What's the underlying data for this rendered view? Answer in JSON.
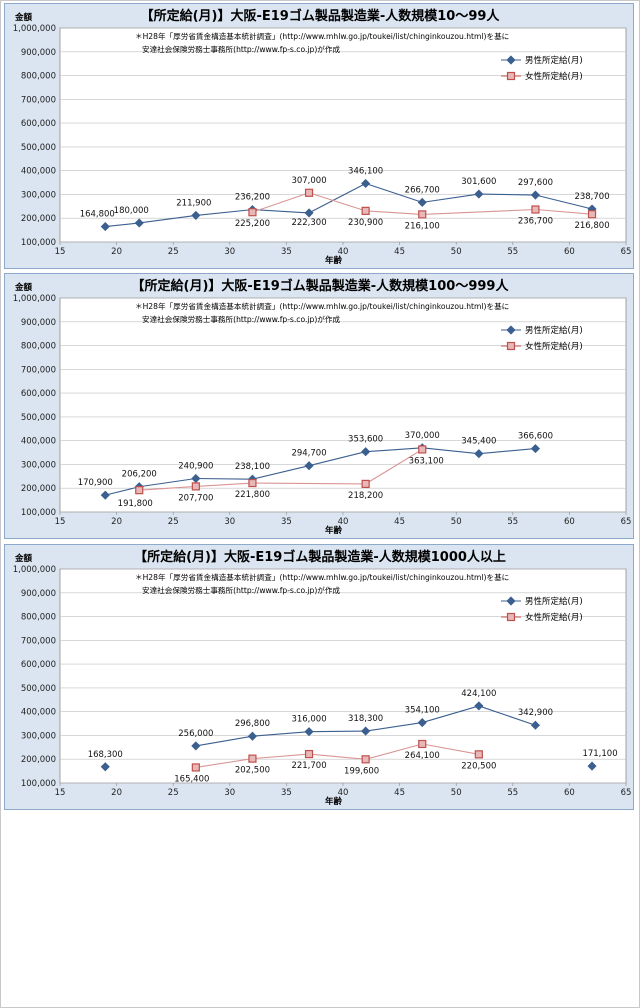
{
  "chart_data": [
    {
      "type": "line",
      "title": "【所定給(月)】大阪-E19ゴム製品製造業-人数規模10～99人",
      "ylabel": "金額",
      "xlabel": "年齢",
      "note": [
        "＊H28年「厚労省賃金構造基本統計調査」(http://www.mhlw.go.jp/toukei/list/chinginkouzou.html)を基に",
        "安達社会保険労務士事務所(http://www.fp-s.co.jp)が作成"
      ],
      "xlim": [
        15,
        65
      ],
      "ylim": [
        100000,
        1000000
      ],
      "xticks": [
        "15",
        "20",
        "25",
        "30",
        "35",
        "40",
        "45",
        "50",
        "55",
        "60",
        "65"
      ],
      "yticks": [
        "100,000",
        "200,000",
        "300,000",
        "400,000",
        "500,000",
        "600,000",
        "700,000",
        "800,000",
        "900,000",
        "1,000,000"
      ],
      "legend_position": "right",
      "series": [
        {
          "name": "男性所定給(月)",
          "color": "#3b5f8f",
          "marker": "diamond",
          "x": [
            19,
            22,
            27,
            32,
            37,
            42,
            47,
            52,
            57,
            62
          ],
          "y": [
            164800,
            180000,
            211900,
            236200,
            222300,
            346100,
            266700,
            301600,
            297600,
            238700
          ],
          "labels": [
            "164,800",
            "180,000",
            "211,900",
            "236,200",
            "222,300",
            "346,100",
            "266,700",
            "301,600",
            "297,600",
            "238,700"
          ]
        },
        {
          "name": "女性所定給(月)",
          "color": "#c0504d",
          "marker": "square",
          "x": [
            32,
            37,
            42,
            47,
            57,
            62
          ],
          "y": [
            225200,
            307000,
            230900,
            216100,
            236700,
            216800
          ],
          "labels": [
            "225,200",
            "307,000",
            "230,900",
            "216,100",
            "236,700",
            "216,800"
          ]
        }
      ]
    },
    {
      "type": "line",
      "title": "【所定給(月)】大阪-E19ゴム製品製造業-人数規模100～999人",
      "ylabel": "金額",
      "xlabel": "年齢",
      "note": [
        "＊H28年「厚労省賃金構造基本統計調査」(http://www.mhlw.go.jp/toukei/list/chinginkouzou.html)を基に",
        "安達社会保険労務士事務所(http://www.fp-s.co.jp)が作成"
      ],
      "xlim": [
        15,
        65
      ],
      "ylim": [
        100000,
        1000000
      ],
      "xticks": [
        "15",
        "20",
        "25",
        "30",
        "35",
        "40",
        "45",
        "50",
        "55",
        "60",
        "65"
      ],
      "yticks": [
        "100,000",
        "200,000",
        "300,000",
        "400,000",
        "500,000",
        "600,000",
        "700,000",
        "800,000",
        "900,000",
        "1,000,000"
      ],
      "legend_position": "right",
      "series": [
        {
          "name": "男性所定給(月)",
          "color": "#3b5f8f",
          "marker": "diamond",
          "x": [
            19,
            22,
            27,
            32,
            37,
            42,
            47,
            52,
            57
          ],
          "y": [
            170900,
            206200,
            240900,
            238100,
            294700,
            353600,
            370000,
            345400,
            366600
          ],
          "labels": [
            "170,900",
            "206,200",
            "240,900",
            "238,100",
            "294,700",
            "353,600",
            "370,000",
            "345,400",
            "366,600"
          ]
        },
        {
          "name": "女性所定給(月)",
          "color": "#c0504d",
          "marker": "square",
          "x": [
            22,
            27,
            32,
            42,
            47
          ],
          "y": [
            191800,
            207700,
            221800,
            218200,
            363100
          ],
          "labels": [
            "191,800",
            "207,700",
            "221,800",
            "218,200",
            "363,100"
          ]
        }
      ]
    },
    {
      "type": "line",
      "title": "【所定給(月)】大阪-E19ゴム製品製造業-人数規模1000人以上",
      "ylabel": "金額",
      "xlabel": "年齢",
      "note": [
        "＊H28年「厚労省賃金構造基本統計調査」(http://www.mhlw.go.jp/toukei/list/chinginkouzou.html)を基に",
        "安達社会保険労務士事務所(http://www.fp-s.co.jp)が作成"
      ],
      "xlim": [
        15,
        65
      ],
      "ylim": [
        100000,
        1000000
      ],
      "xticks": [
        "15",
        "20",
        "25",
        "30",
        "35",
        "40",
        "45",
        "50",
        "55",
        "60",
        "65"
      ],
      "yticks": [
        "100,000",
        "200,000",
        "300,000",
        "400,000",
        "500,000",
        "600,000",
        "700,000",
        "800,000",
        "900,000",
        "1,000,000"
      ],
      "legend_position": "right",
      "series": [
        {
          "name": "男性所定給(月)",
          "color": "#3b5f8f",
          "marker": "diamond",
          "x": [
            19,
            27,
            32,
            37,
            42,
            47,
            52,
            57,
            62
          ],
          "y": [
            168300,
            256000,
            296800,
            316000,
            318300,
            354100,
            424100,
            342900,
            171100
          ],
          "labels": [
            "168,300",
            "256,000",
            "296,800",
            "316,000",
            "318,300",
            "354,100",
            "424,100",
            "342,900",
            "171,100"
          ],
          "breaks_after_index": [
            0,
            7
          ]
        },
        {
          "name": "女性所定給(月)",
          "color": "#c0504d",
          "marker": "square",
          "x": [
            27,
            32,
            37,
            42,
            47,
            52
          ],
          "y": [
            165400,
            202500,
            221700,
            199600,
            264100,
            220500
          ],
          "labels": [
            "165,400",
            "202,500",
            "221,700",
            "199,600",
            "264,100",
            "220,500"
          ]
        }
      ]
    }
  ]
}
